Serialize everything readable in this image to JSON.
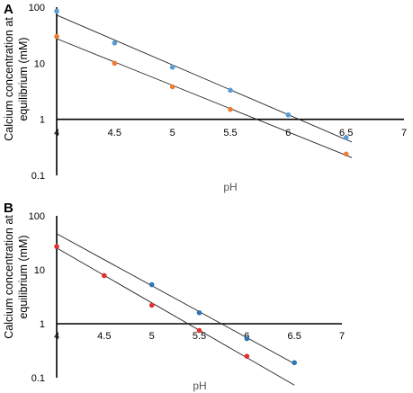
{
  "chart_data": [
    {
      "panel": "A",
      "type": "scatter",
      "ylabel": [
        "Calcium concentration at",
        "equilibrium (mM)"
      ],
      "xlabel": "pH",
      "xlim": [
        4,
        7
      ],
      "ylim": [
        0.1,
        100
      ],
      "yscale": "log",
      "x_ticks": [
        "4",
        "4.5",
        "5",
        "5.5",
        "6",
        "6.5",
        "7"
      ],
      "y_ticks": [
        "100",
        "10",
        "1",
        "0.1"
      ],
      "x_axis_at_y": 1,
      "series": [
        {
          "color": "#5b9bd5",
          "trendline": "exponential",
          "points": [
            {
              "x": 4.0,
              "y": 85
            },
            {
              "x": 4.5,
              "y": 23
            },
            {
              "x": 5.0,
              "y": 8.5
            },
            {
              "x": 5.5,
              "y": 3.3
            },
            {
              "x": 6.0,
              "y": 1.2
            },
            {
              "x": 6.5,
              "y": 0.47
            }
          ]
        },
        {
          "color": "#ed7d31",
          "trendline": "exponential",
          "points": [
            {
              "x": 4.0,
              "y": 30
            },
            {
              "x": 4.5,
              "y": 10
            },
            {
              "x": 5.0,
              "y": 3.8
            },
            {
              "x": 5.5,
              "y": 1.5
            },
            {
              "x": 6.5,
              "y": 0.24
            }
          ]
        }
      ]
    },
    {
      "panel": "B",
      "type": "scatter",
      "ylabel": [
        "Calcium concentration at",
        "equilibrium (mM)"
      ],
      "xlabel": "pH",
      "xlim": [
        4,
        7
      ],
      "ylim": [
        0.1,
        100
      ],
      "yscale": "log",
      "x_ticks": [
        "4",
        "4.5",
        "5",
        "5.5",
        "6",
        "6.5",
        "7"
      ],
      "y_ticks": [
        "100",
        "10",
        "1",
        "0.1"
      ],
      "x_axis_at_y": 1,
      "series": [
        {
          "color": "#2e75b6",
          "trendline": "exponential",
          "points": [
            {
              "x": 5.0,
              "y": 5.3
            },
            {
              "x": 5.5,
              "y": 1.6
            },
            {
              "x": 6.0,
              "y": 0.53
            },
            {
              "x": 6.5,
              "y": 0.19
            }
          ]
        },
        {
          "color": "#e03030",
          "trendline": "exponential",
          "points": [
            {
              "x": 4.0,
              "y": 27
            },
            {
              "x": 4.5,
              "y": 7.8
            },
            {
              "x": 5.0,
              "y": 2.2
            },
            {
              "x": 5.5,
              "y": 0.75
            },
            {
              "x": 6.0,
              "y": 0.25
            }
          ]
        }
      ]
    }
  ]
}
